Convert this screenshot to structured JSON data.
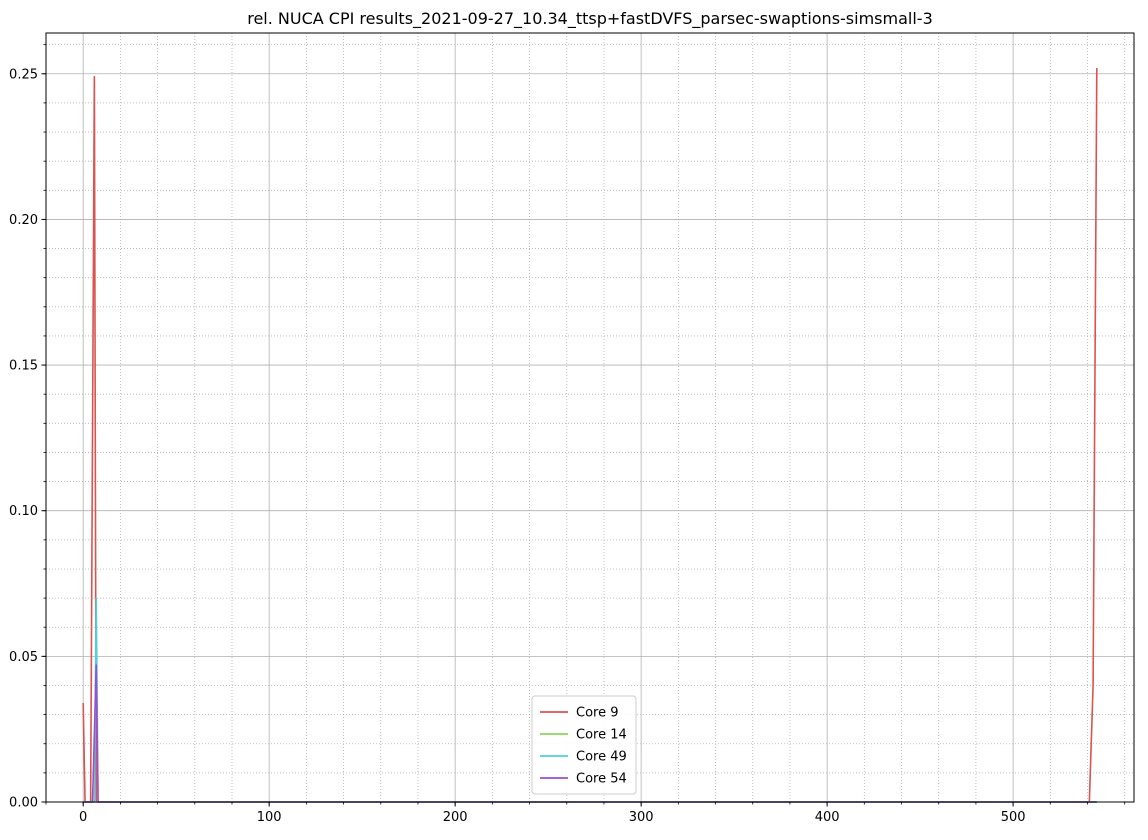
{
  "chart_data": {
    "type": "line",
    "title": "rel. NUCA CPI results_2021-09-27_10.34_ttsp+fastDVFS_parsec-swaptions-simsmall-3",
    "xlabel": "",
    "ylabel": "",
    "xlim": [
      -20,
      565
    ],
    "ylim": [
      0,
      0.264
    ],
    "x_ticks": [
      0,
      100,
      200,
      300,
      400,
      500
    ],
    "x_tick_labels": [
      "0",
      "100",
      "200",
      "300",
      "400",
      "500"
    ],
    "y_ticks": [
      0,
      0.05,
      0.1,
      0.15,
      0.2,
      0.25
    ],
    "y_tick_labels": [
      "0.00",
      "0.05",
      "0.10",
      "0.15",
      "0.20",
      "0.25"
    ],
    "x_minor_step": 20,
    "y_minor_step": 0.01,
    "grid": "major solid, minor dotted",
    "legend_position": "lower center",
    "series": [
      {
        "name": "Core 9",
        "color": "#d9534f",
        "points": [
          [
            0,
            0.034
          ],
          [
            1,
            0.0
          ],
          [
            4,
            0.0
          ],
          [
            6,
            0.249
          ],
          [
            7,
            0.0
          ],
          [
            541,
            0.0
          ],
          [
            543,
            0.04
          ],
          [
            545,
            0.252
          ]
        ]
      },
      {
        "name": "Core 14",
        "color": "#8cd65a",
        "points": [
          [
            0,
            0.0
          ],
          [
            6,
            0.0
          ],
          [
            7,
            0.0
          ],
          [
            545,
            0.0
          ]
        ]
      },
      {
        "name": "Core 49",
        "color": "#4dd0d9",
        "points": [
          [
            0,
            0.0
          ],
          [
            6,
            0.0
          ],
          [
            7,
            0.07
          ],
          [
            8,
            0.0
          ],
          [
            545,
            0.0
          ]
        ]
      },
      {
        "name": "Core 54",
        "color": "#9a4fd0",
        "points": [
          [
            0,
            0.0
          ],
          [
            5,
            0.0
          ],
          [
            7,
            0.047
          ],
          [
            8,
            0.0
          ],
          [
            545,
            0.0
          ]
        ]
      }
    ]
  }
}
